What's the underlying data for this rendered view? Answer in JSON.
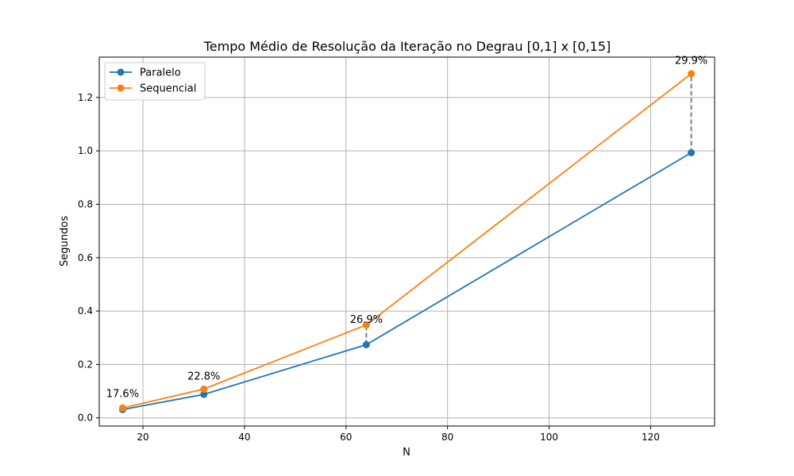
{
  "chart_data": {
    "type": "line",
    "title": "Tempo Médio de Resolução da Iteração no Degrau [0,1] x [0,15]",
    "xlabel": "N",
    "ylabel": "Segundos",
    "xlim": [
      11.4,
      132.6
    ],
    "ylim": [
      -0.0305,
      1.351
    ],
    "xticks": [
      20,
      40,
      60,
      80,
      100,
      120
    ],
    "yticks": [
      0.0,
      0.2,
      0.4,
      0.6,
      0.8,
      1.0,
      1.2
    ],
    "xtick_labels": [
      "20",
      "40",
      "60",
      "80",
      "100",
      "120"
    ],
    "ytick_labels": [
      "0.0",
      "0.2",
      "0.4",
      "0.6",
      "0.8",
      "1.0",
      "1.2"
    ],
    "grid": true,
    "legend_position": "upper-left",
    "x": [
      16,
      32,
      64,
      128
    ],
    "series": [
      {
        "name": "Paralelo",
        "color": "#1f77b4",
        "values": [
          0.031,
          0.088,
          0.274,
          0.993
        ]
      },
      {
        "name": "Sequencial",
        "color": "#ff7f0e",
        "values": [
          0.037,
          0.108,
          0.348,
          1.289
        ]
      }
    ],
    "annotations": [
      "17.6%",
      "22.8%",
      "26.9%",
      "29.9%"
    ],
    "connector_color": "#808080"
  }
}
